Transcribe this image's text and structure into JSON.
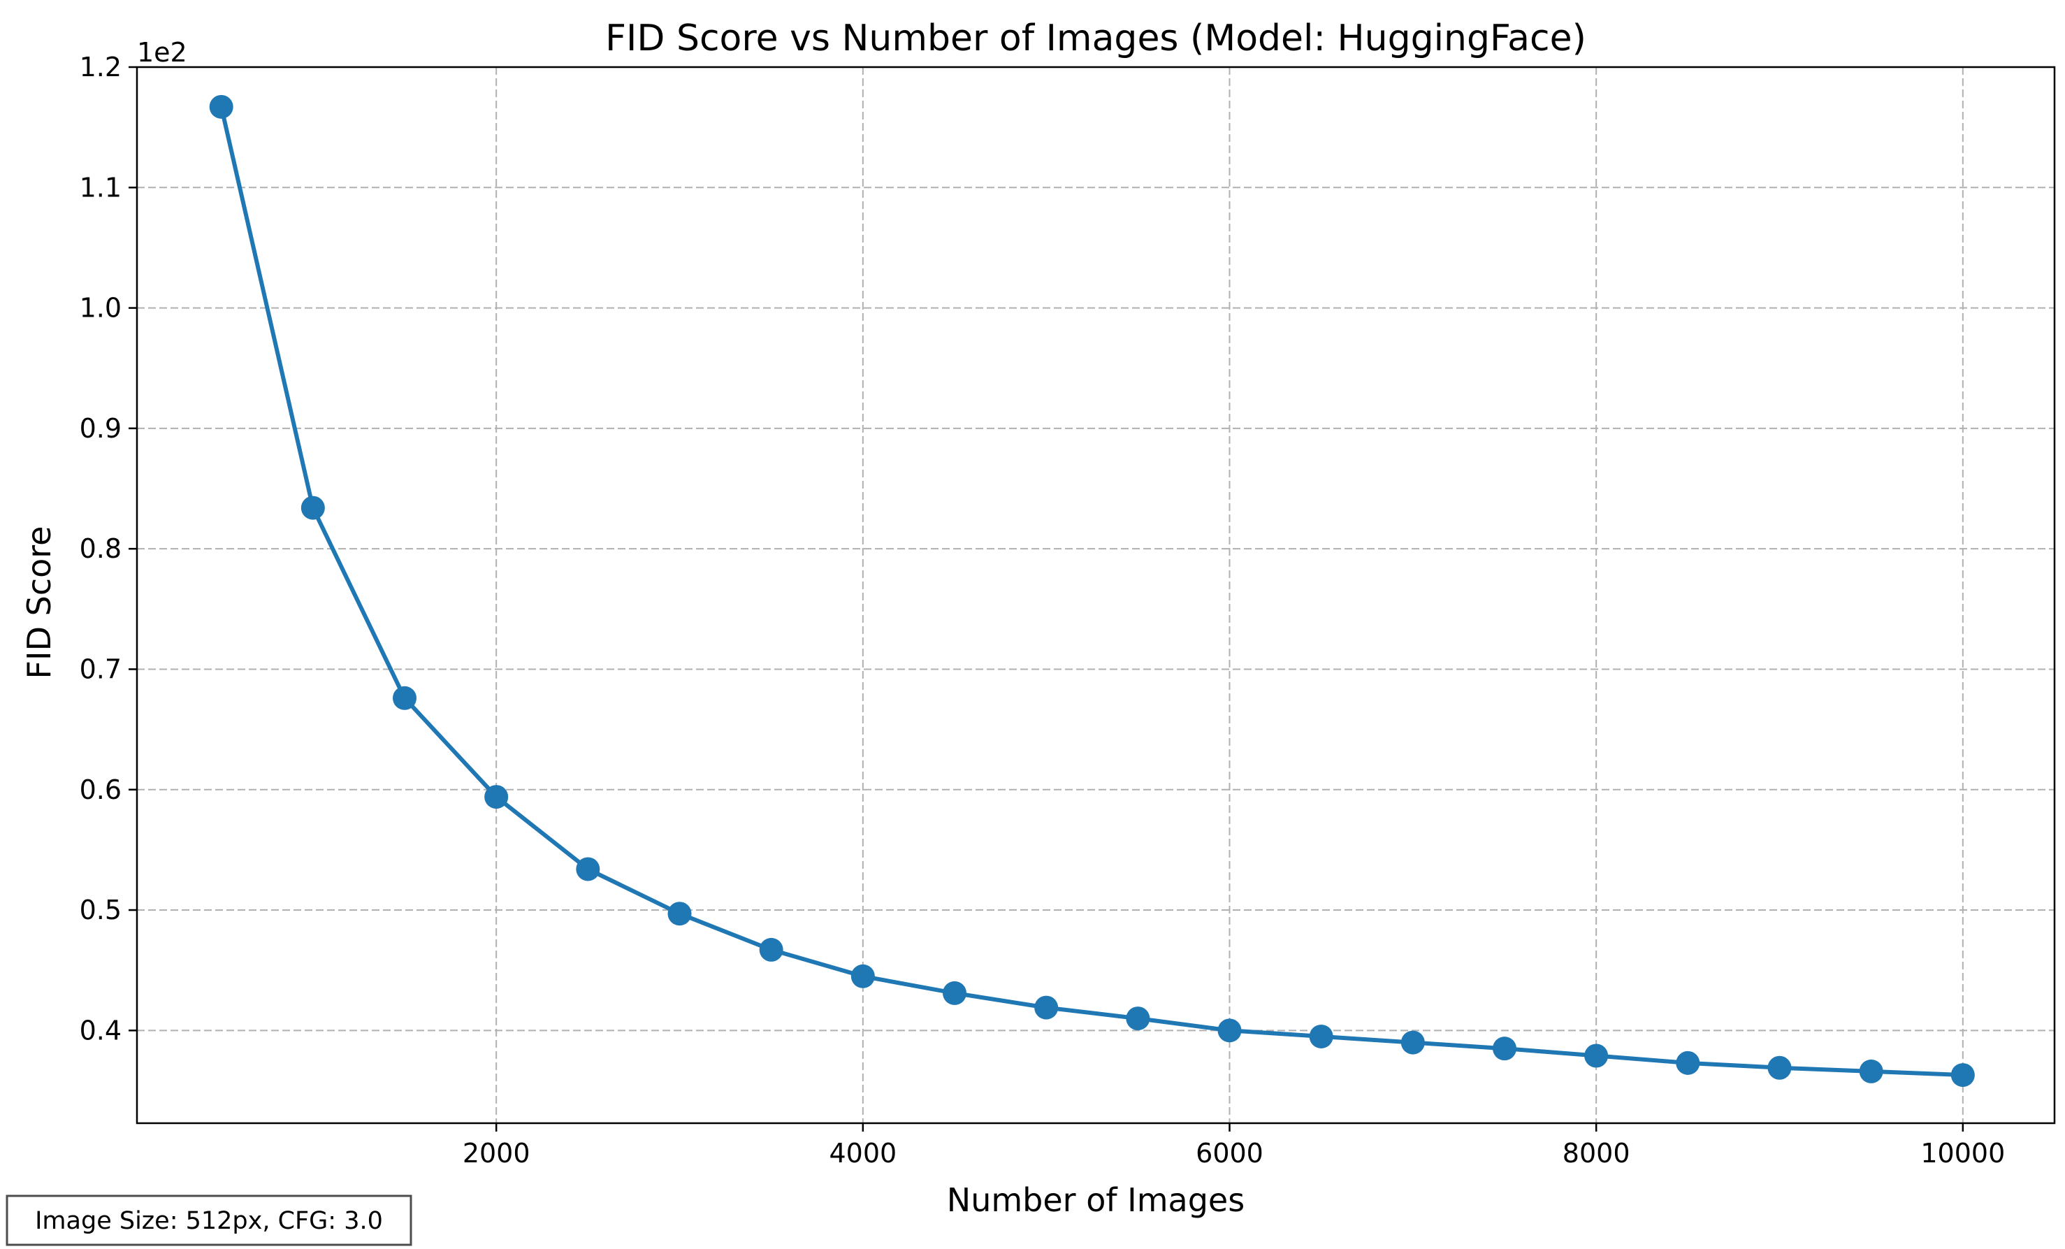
{
  "chart_data": {
    "type": "line",
    "title": "FID Score vs Number of Images (Model: HuggingFace)",
    "xlabel": "Number of Images",
    "ylabel": "FID Score",
    "y_offset_label": "1e2",
    "xlim": [
      40,
      10500
    ],
    "ylim": [
      0.323,
      1.2
    ],
    "x_ticks": [
      2000,
      4000,
      6000,
      8000,
      10000
    ],
    "x_tick_labels": [
      "2000",
      "4000",
      "6000",
      "8000",
      "10000"
    ],
    "y_ticks": [
      0.4,
      0.5,
      0.6,
      0.7,
      0.8,
      0.9,
      1.0,
      1.1,
      1.2
    ],
    "y_tick_labels": [
      "0.4",
      "0.5",
      "0.6",
      "0.7",
      "0.8",
      "0.9",
      "1.0",
      "1.1",
      "1.2"
    ],
    "grid": true,
    "legend": "none",
    "series": [
      {
        "color": "#1f77b4",
        "marker": "circle",
        "x": [
          500,
          1000,
          1500,
          2000,
          2500,
          3000,
          3500,
          4000,
          4500,
          5000,
          5500,
          6000,
          6500,
          7000,
          7500,
          8000,
          8500,
          9000,
          9500,
          10000
        ],
        "y": [
          1.167,
          0.834,
          0.676,
          0.594,
          0.534,
          0.497,
          0.467,
          0.445,
          0.431,
          0.419,
          0.41,
          0.4,
          0.395,
          0.39,
          0.385,
          0.379,
          0.373,
          0.369,
          0.366,
          0.363
        ]
      }
    ],
    "annotation": "Image Size: 512px, CFG: 3.0"
  }
}
